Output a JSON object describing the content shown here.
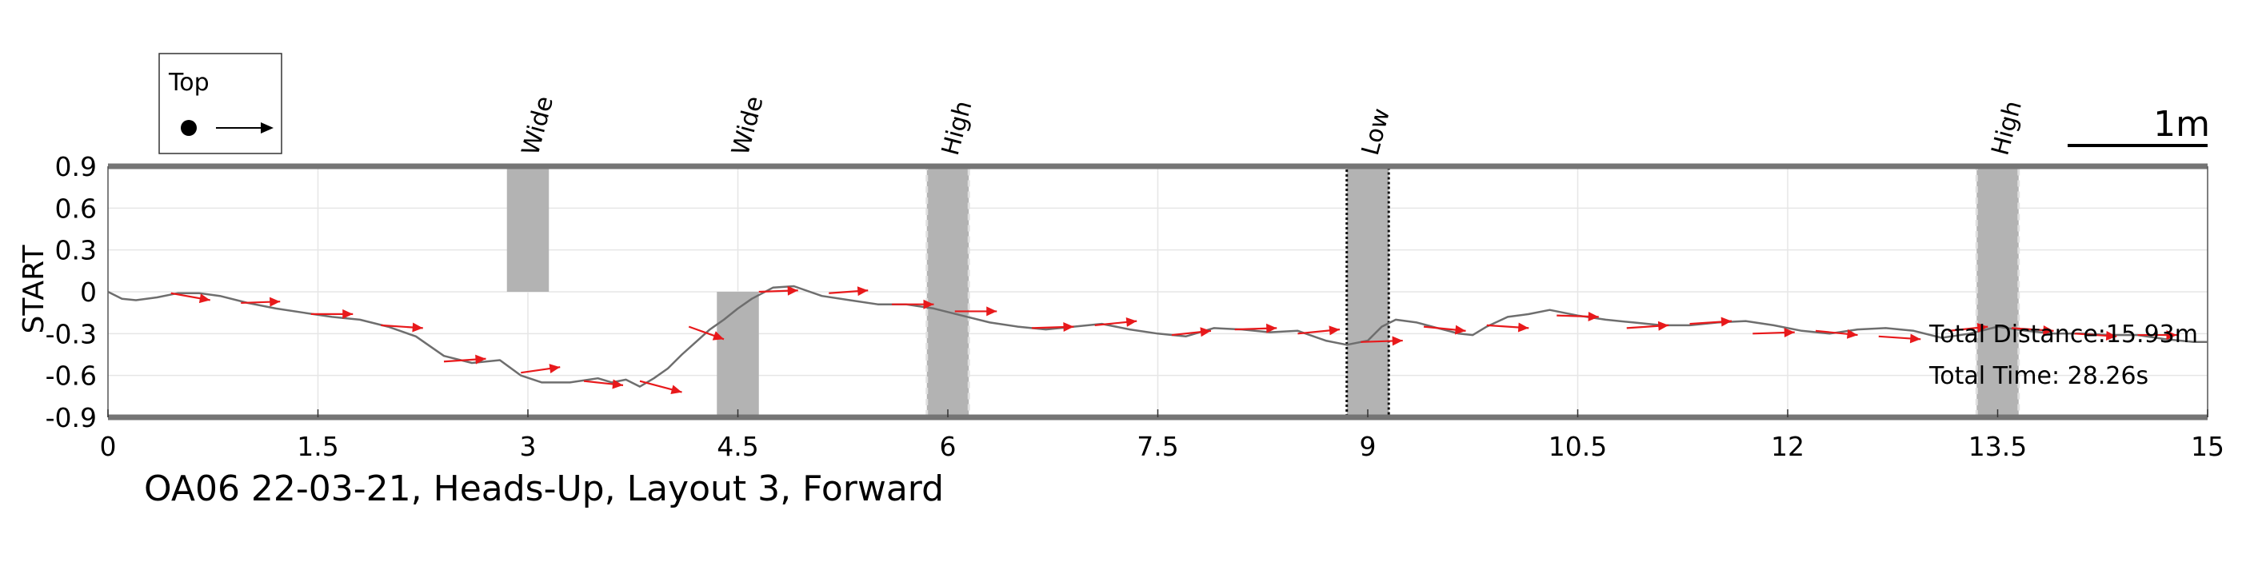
{
  "chart_data": {
    "type": "line",
    "title": "OA06 22-03-21, Heads-Up, Layout 3, Forward",
    "xlabel": "",
    "ylabel": "START",
    "xlim": [
      0,
      15
    ],
    "ylim": [
      -0.9,
      0.9
    ],
    "xticks": [
      0,
      1.5,
      3,
      4.5,
      6,
      7.5,
      9,
      10.5,
      12,
      13.5,
      15
    ],
    "xtick_labels": [
      "0",
      "1.5",
      "3",
      "4.5",
      "6",
      "7.5",
      "9",
      "10.5",
      "12",
      "13.5",
      "15"
    ],
    "yticks": [
      0.9,
      0.6,
      0.3,
      0,
      -0.3,
      -0.6,
      -0.9
    ],
    "ytick_labels": [
      "0.9",
      "0.6",
      "0.3",
      "0",
      "-0.3",
      "-0.6",
      "-0.9"
    ],
    "grid": true,
    "legend": {
      "label": "Top",
      "position": "top-left",
      "symbol": "dot-arrow"
    },
    "scale_bar": {
      "label": "1m",
      "length": 1.0,
      "position": "top-right"
    },
    "annotations": [
      "Total Distance:15.93m",
      "Total Time: 28.26s"
    ],
    "obstacles": [
      {
        "label": "Wide",
        "x0": 2.85,
        "x1": 3.15,
        "y0": 0,
        "y1": 0.9,
        "style": "plain"
      },
      {
        "label": "Wide",
        "x0": 4.35,
        "x1": 4.65,
        "y0": -0.9,
        "y1": 0,
        "style": "plain"
      },
      {
        "label": "High",
        "x0": 5.85,
        "x1": 6.15,
        "y0": -0.9,
        "y1": 0.9,
        "style": "dashed-light"
      },
      {
        "label": "Low",
        "x0": 8.85,
        "x1": 9.15,
        "y0": -0.9,
        "y1": 0.9,
        "style": "dotted-dark"
      },
      {
        "label": "High",
        "x0": 13.35,
        "x1": 13.65,
        "y0": -0.9,
        "y1": 0.9,
        "style": "dashed-light"
      }
    ],
    "series": [
      {
        "name": "path",
        "x": [
          0,
          0.1,
          0.2,
          0.35,
          0.5,
          0.65,
          0.8,
          1.0,
          1.2,
          1.4,
          1.6,
          1.8,
          2.0,
          2.2,
          2.4,
          2.6,
          2.8,
          2.95,
          3.1,
          3.3,
          3.5,
          3.6,
          3.7,
          3.8,
          3.9,
          4.0,
          4.1,
          4.2,
          4.3,
          4.4,
          4.5,
          4.6,
          4.75,
          4.9,
          5.1,
          5.3,
          5.5,
          5.7,
          5.9,
          6.1,
          6.3,
          6.5,
          6.7,
          6.9,
          7.1,
          7.3,
          7.5,
          7.7,
          7.9,
          8.1,
          8.3,
          8.5,
          8.7,
          8.85,
          9.0,
          9.1,
          9.2,
          9.35,
          9.5,
          9.65,
          9.75,
          9.85,
          10.0,
          10.15,
          10.3,
          10.5,
          10.7,
          10.9,
          11.1,
          11.3,
          11.5,
          11.7,
          11.9,
          12.1,
          12.3,
          12.5,
          12.7,
          12.9,
          13.1,
          13.3,
          13.5,
          13.7,
          13.9,
          14.1,
          14.3,
          14.5,
          14.7,
          14.9,
          15.0
        ],
        "y": [
          0,
          -0.05,
          -0.06,
          -0.04,
          -0.01,
          -0.01,
          -0.03,
          -0.08,
          -0.12,
          -0.15,
          -0.18,
          -0.2,
          -0.25,
          -0.32,
          -0.46,
          -0.51,
          -0.49,
          -0.6,
          -0.65,
          -0.65,
          -0.62,
          -0.65,
          -0.63,
          -0.68,
          -0.62,
          -0.55,
          -0.45,
          -0.36,
          -0.27,
          -0.2,
          -0.12,
          -0.05,
          0.03,
          0.04,
          -0.03,
          -0.06,
          -0.09,
          -0.09,
          -0.12,
          -0.17,
          -0.22,
          -0.25,
          -0.27,
          -0.25,
          -0.23,
          -0.27,
          -0.3,
          -0.32,
          -0.26,
          -0.27,
          -0.29,
          -0.28,
          -0.35,
          -0.38,
          -0.35,
          -0.25,
          -0.2,
          -0.22,
          -0.26,
          -0.3,
          -0.31,
          -0.25,
          -0.18,
          -0.16,
          -0.13,
          -0.17,
          -0.2,
          -0.22,
          -0.24,
          -0.24,
          -0.22,
          -0.21,
          -0.24,
          -0.28,
          -0.3,
          -0.27,
          -0.26,
          -0.28,
          -0.33,
          -0.3,
          -0.25,
          -0.28,
          -0.3,
          -0.3,
          -0.31,
          -0.31,
          -0.34,
          -0.36,
          -0.36
        ]
      }
    ],
    "arrows": [
      {
        "x": 0.45,
        "y": -0.01,
        "dx": 0.28,
        "dy": -0.05
      },
      {
        "x": 0.95,
        "y": -0.08,
        "dx": 0.28,
        "dy": 0.01
      },
      {
        "x": 1.45,
        "y": -0.16,
        "dx": 0.3,
        "dy": 0.0
      },
      {
        "x": 1.95,
        "y": -0.24,
        "dx": 0.3,
        "dy": -0.02
      },
      {
        "x": 2.4,
        "y": -0.5,
        "dx": 0.3,
        "dy": 0.02
      },
      {
        "x": 2.95,
        "y": -0.58,
        "dx": 0.28,
        "dy": 0.04
      },
      {
        "x": 3.4,
        "y": -0.64,
        "dx": 0.28,
        "dy": -0.03
      },
      {
        "x": 3.8,
        "y": -0.64,
        "dx": 0.3,
        "dy": -0.08
      },
      {
        "x": 4.15,
        "y": -0.25,
        "dx": 0.25,
        "dy": -0.09
      },
      {
        "x": 4.65,
        "y": 0.0,
        "dx": 0.28,
        "dy": 0.01
      },
      {
        "x": 5.15,
        "y": -0.01,
        "dx": 0.28,
        "dy": 0.02
      },
      {
        "x": 5.6,
        "y": -0.09,
        "dx": 0.3,
        "dy": 0.0
      },
      {
        "x": 6.05,
        "y": -0.14,
        "dx": 0.3,
        "dy": 0.0
      },
      {
        "x": 6.6,
        "y": -0.26,
        "dx": 0.3,
        "dy": 0.01
      },
      {
        "x": 7.05,
        "y": -0.24,
        "dx": 0.3,
        "dy": 0.03
      },
      {
        "x": 7.6,
        "y": -0.31,
        "dx": 0.28,
        "dy": 0.03
      },
      {
        "x": 8.05,
        "y": -0.27,
        "dx": 0.3,
        "dy": 0.01
      },
      {
        "x": 8.5,
        "y": -0.3,
        "dx": 0.3,
        "dy": 0.03
      },
      {
        "x": 8.95,
        "y": -0.36,
        "dx": 0.3,
        "dy": 0.01
      },
      {
        "x": 9.4,
        "y": -0.25,
        "dx": 0.3,
        "dy": -0.03
      },
      {
        "x": 9.85,
        "y": -0.24,
        "dx": 0.3,
        "dy": -0.02
      },
      {
        "x": 10.35,
        "y": -0.17,
        "dx": 0.3,
        "dy": -0.01
      },
      {
        "x": 10.85,
        "y": -0.26,
        "dx": 0.3,
        "dy": 0.02
      },
      {
        "x": 11.3,
        "y": -0.23,
        "dx": 0.3,
        "dy": 0.02
      },
      {
        "x": 11.75,
        "y": -0.3,
        "dx": 0.3,
        "dy": 0.01
      },
      {
        "x": 12.2,
        "y": -0.28,
        "dx": 0.3,
        "dy": -0.03
      },
      {
        "x": 12.65,
        "y": -0.32,
        "dx": 0.3,
        "dy": -0.02
      },
      {
        "x": 13.15,
        "y": -0.28,
        "dx": 0.28,
        "dy": 0.03
      },
      {
        "x": 13.6,
        "y": -0.26,
        "dx": 0.3,
        "dy": -0.02
      },
      {
        "x": 14.05,
        "y": -0.3,
        "dx": 0.3,
        "dy": -0.02
      },
      {
        "x": 14.5,
        "y": -0.31,
        "dx": 0.28,
        "dy": 0.0
      }
    ],
    "colors": {
      "path": "#6e6e6e",
      "arrow": "#e8191b",
      "obstacle": "#b3b3b3",
      "grid": "#e6e6e6",
      "frame": "#757575"
    }
  }
}
